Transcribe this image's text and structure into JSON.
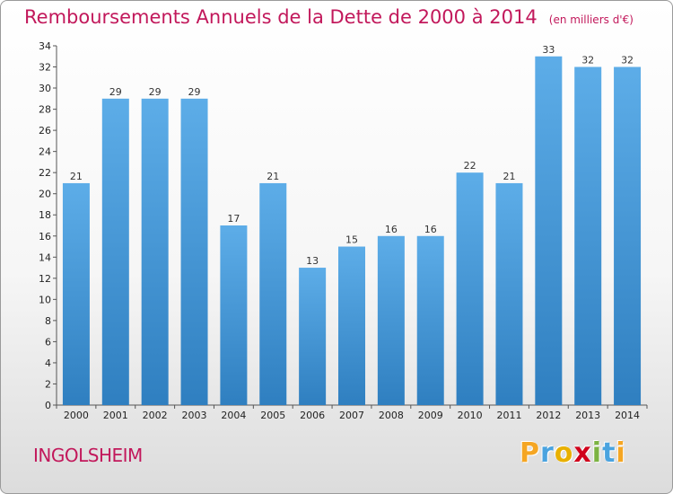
{
  "title": "Remboursements Annuels de la Dette de 2000 à 2014",
  "subtitle": "(en milliers d'€)",
  "commune": "INGOLSHEIM",
  "logo": {
    "text": "Proxiti",
    "letters": [
      {
        "char": "P",
        "color": "#f5a623"
      },
      {
        "char": "r",
        "color": "#4aa3df"
      },
      {
        "char": "o",
        "color": "#e8b000"
      },
      {
        "char": "x",
        "color": "#d0021b"
      },
      {
        "char": "i",
        "color": "#7cb342"
      },
      {
        "char": "t",
        "color": "#4aa3df"
      },
      {
        "char": "i",
        "color": "#f5a623"
      }
    ]
  },
  "colors": {
    "title": "#c2185b",
    "bar_top": "#5dade8",
    "bar_bottom": "#2f7fc0"
  },
  "chart_data": {
    "type": "bar",
    "categories": [
      "2000",
      "2001",
      "2002",
      "2003",
      "2004",
      "2005",
      "2006",
      "2007",
      "2008",
      "2009",
      "2010",
      "2011",
      "2012",
      "2013",
      "2014"
    ],
    "values": [
      21,
      29,
      29,
      29,
      17,
      21,
      13,
      15,
      16,
      16,
      22,
      21,
      33,
      32,
      32
    ],
    "ylim": [
      0,
      34
    ],
    "yticks": [
      0,
      2,
      4,
      6,
      8,
      10,
      12,
      14,
      16,
      18,
      20,
      22,
      24,
      26,
      28,
      30,
      32,
      34
    ],
    "grid": false,
    "data_labels": true
  }
}
